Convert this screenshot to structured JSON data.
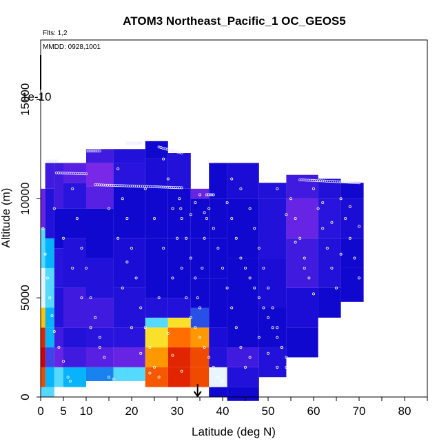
{
  "chart_data": {
    "type": "heatmap",
    "title": "ATOM3 Northeast_Pacific_1 OC_GEOS5",
    "subtitle_flights": "Flts: 1,2",
    "subtitle_dates": "MMDD: 0928,1001",
    "xlabel": "Latitude (deg N)",
    "ylabel": "Altitude (m)",
    "xlim": [
      0,
      85
    ],
    "ylim": [
      0,
      18000
    ],
    "x_ticks": [
      0,
      5,
      10,
      20,
      30,
      40,
      50,
      60,
      70,
      80
    ],
    "y_ticks": [
      0,
      5000,
      10000,
      15000
    ],
    "scale_annotation": "1e-10",
    "arrow_latitude": 34.5,
    "colors": {
      "deep_blue": "#0000c8",
      "violet": "#7a20e0",
      "cyan": "#00c8ff",
      "yellow": "#ffd000",
      "red": "#e00000"
    },
    "columns": [
      {
        "x": [
          0,
          1
        ],
        "z": [
          [
            0,
            500,
            0.55
          ],
          [
            500,
            1500,
            0.9
          ],
          [
            1500,
            2500,
            1.0
          ],
          [
            2500,
            3500,
            0.95
          ],
          [
            3500,
            4500,
            0.75
          ],
          [
            4500,
            6500,
            0.6
          ],
          [
            6500,
            8500,
            0.55
          ],
          [
            8500,
            10500,
            0.2
          ]
        ]
      },
      {
        "x": [
          1,
          3
        ],
        "z": [
          [
            0,
            500,
            0.55
          ],
          [
            500,
            1500,
            0.5
          ],
          [
            1500,
            2500,
            0.35
          ],
          [
            2500,
            3500,
            0.5
          ],
          [
            3500,
            4500,
            0.5
          ],
          [
            4500,
            6500,
            0.55
          ],
          [
            6500,
            8000,
            0.5
          ],
          [
            8000,
            10500,
            0.1
          ],
          [
            10500,
            11800,
            0.15
          ]
        ]
      },
      {
        "x": [
          3,
          5
        ],
        "z": [
          [
            500,
            1500,
            0.55
          ],
          [
            1500,
            2500,
            0.2
          ],
          [
            2500,
            3500,
            0.15
          ],
          [
            3500,
            5500,
            0.1
          ],
          [
            5500,
            7500,
            0.12
          ],
          [
            7500,
            9500,
            0.05
          ],
          [
            9500,
            11800,
            0.15
          ]
        ]
      },
      {
        "x": [
          5,
          10
        ],
        "z": [
          [
            500,
            1500,
            0.5
          ],
          [
            1500,
            2500,
            0.15
          ],
          [
            2500,
            3500,
            0.1
          ],
          [
            3500,
            5500,
            0.15
          ],
          [
            5500,
            8000,
            0.1
          ],
          [
            8000,
            9500,
            0.05
          ],
          [
            9500,
            10800,
            0.12
          ],
          [
            10800,
            11800,
            0.18
          ]
        ]
      },
      {
        "x": [
          10,
          16
        ],
        "z": [
          [
            800,
            1500,
            0.45
          ],
          [
            1500,
            2500,
            0.18
          ],
          [
            2500,
            3500,
            0.12
          ],
          [
            3500,
            5000,
            0.15
          ],
          [
            5000,
            7000,
            0.1
          ],
          [
            7000,
            9500,
            0.05
          ],
          [
            9500,
            10600,
            0.18
          ],
          [
            10600,
            11800,
            0.22
          ],
          [
            11800,
            12500,
            0.15
          ]
        ]
      },
      {
        "x": [
          16,
          23
        ],
        "z": [
          [
            800,
            1500,
            0.55
          ],
          [
            1500,
            2500,
            0.2
          ],
          [
            2500,
            3500,
            0.12
          ],
          [
            3500,
            5500,
            0.1
          ],
          [
            5500,
            8000,
            0.08
          ],
          [
            8000,
            10600,
            0.05
          ],
          [
            10600,
            11800,
            0.12
          ],
          [
            11800,
            12500,
            0.1
          ]
        ]
      },
      {
        "x": [
          23,
          28
        ],
        "z": [
          [
            500,
            1500,
            0.88
          ],
          [
            1500,
            2500,
            0.8
          ],
          [
            2500,
            3500,
            0.7
          ],
          [
            3500,
            4000,
            0.55
          ],
          [
            4000,
            5000,
            0.1
          ],
          [
            5000,
            8000,
            0.05
          ],
          [
            8000,
            10600,
            0.05
          ],
          [
            10600,
            12000,
            0.08
          ],
          [
            12000,
            12900,
            0.05
          ]
        ]
      },
      {
        "x": [
          28,
          33
        ],
        "z": [
          [
            500,
            1500,
            0.95
          ],
          [
            1500,
            2500,
            0.95
          ],
          [
            2500,
            3500,
            0.85
          ],
          [
            3500,
            4000,
            0.7
          ],
          [
            4000,
            5000,
            0.1
          ],
          [
            5000,
            8000,
            0.05
          ],
          [
            8000,
            10500,
            0.05
          ],
          [
            10500,
            12300,
            0.1
          ]
        ]
      },
      {
        "x": [
          33,
          37
        ],
        "z": [
          [
            500,
            1500,
            0.9
          ],
          [
            1500,
            2500,
            0.9
          ],
          [
            2500,
            3500,
            0.8
          ],
          [
            3500,
            4500,
            0.4
          ],
          [
            4500,
            6000,
            0.05
          ],
          [
            6000,
            8000,
            0.05
          ],
          [
            8000,
            10000,
            0.05
          ],
          [
            10000,
            10500,
            0.2
          ]
        ]
      },
      {
        "x": [
          37,
          41
        ],
        "z": [
          [
            0,
            500,
            0.05
          ],
          [
            500,
            1500,
            0.6
          ],
          [
            1500,
            2500,
            0.1
          ],
          [
            2500,
            3500,
            0.08
          ],
          [
            3500,
            6000,
            0.05
          ],
          [
            6000,
            8000,
            0.05
          ],
          [
            8000,
            10000,
            0.05
          ],
          [
            10000,
            11800,
            0.05
          ]
        ]
      },
      {
        "x": [
          41,
          48
        ],
        "z": [
          [
            -200,
            500,
            0.05
          ],
          [
            500,
            1500,
            0.1
          ],
          [
            1500,
            2500,
            0.15
          ],
          [
            2500,
            4500,
            0.05
          ],
          [
            4500,
            7000,
            0.05
          ],
          [
            7000,
            10000,
            0.05
          ],
          [
            10000,
            11800,
            0.08
          ]
        ]
      },
      {
        "x": [
          48,
          54
        ],
        "z": [
          [
            1000,
            2500,
            0.1
          ],
          [
            2500,
            4500,
            0.05
          ],
          [
            4500,
            7000,
            0.08
          ],
          [
            7000,
            10000,
            0.1
          ],
          [
            10000,
            10800,
            0.1
          ]
        ]
      },
      {
        "x": [
          54,
          61
        ],
        "z": [
          [
            2000,
            3500,
            0.05
          ],
          [
            3500,
            5500,
            0.08
          ],
          [
            5500,
            8000,
            0.15
          ],
          [
            8000,
            10000,
            0.2
          ],
          [
            10000,
            11200,
            0.15
          ]
        ]
      },
      {
        "x": [
          61,
          66
        ],
        "z": [
          [
            4000,
            5500,
            0.05
          ],
          [
            5500,
            8000,
            0.1
          ],
          [
            8000,
            10000,
            0.12
          ],
          [
            10000,
            11000,
            0.1
          ]
        ]
      },
      {
        "x": [
          66,
          71
        ],
        "z": [
          [
            4800,
            6500,
            0.05
          ],
          [
            6500,
            8000,
            0.05
          ],
          [
            8000,
            10000,
            0.08
          ],
          [
            10000,
            10800,
            0.05
          ]
        ]
      }
    ],
    "flight_tracks": [
      [
        [
          1.5,
          11900
        ],
        [
          3.5,
          11900
        ]
      ],
      [
        [
          3.5,
          11300
        ],
        [
          10,
          11250
        ]
      ],
      [
        [
          10,
          12400
        ],
        [
          13,
          12400
        ]
      ],
      [
        [
          12,
          10700
        ],
        [
          31,
          10550
        ]
      ],
      [
        [
          19,
          12800
        ],
        [
          22,
          12800
        ]
      ],
      [
        [
          26,
          12600
        ],
        [
          31,
          12300
        ]
      ],
      [
        [
          36.5,
          10200
        ],
        [
          38,
          10200
        ]
      ],
      [
        [
          57,
          10950
        ],
        [
          70,
          10800
        ]
      ]
    ],
    "sample_points": [
      [
        0.5,
        8500
      ],
      [
        1,
        7200
      ],
      [
        1.5,
        6000
      ],
      [
        2,
        5000
      ],
      [
        2.5,
        4100
      ],
      [
        3,
        3300
      ],
      [
        4,
        2500
      ],
      [
        5,
        1800
      ],
      [
        6,
        1000
      ],
      [
        6.5,
        800
      ],
      [
        7,
        10500
      ],
      [
        8,
        9000
      ],
      [
        9,
        7500
      ],
      [
        10,
        6500
      ],
      [
        11,
        5000
      ],
      [
        12,
        4000
      ],
      [
        13,
        3000
      ],
      [
        14,
        2000
      ],
      [
        15,
        1000
      ],
      [
        16,
        900
      ],
      [
        17,
        11500
      ],
      [
        18,
        10000
      ],
      [
        19,
        9000
      ],
      [
        20,
        7500
      ],
      [
        21,
        6000
      ],
      [
        22,
        4500
      ],
      [
        23,
        3500
      ],
      [
        24,
        2500
      ],
      [
        25,
        1500
      ],
      [
        26,
        1000
      ],
      [
        27,
        12000
      ],
      [
        28,
        11000
      ],
      [
        29,
        9500
      ],
      [
        30,
        8000
      ],
      [
        31,
        6500
      ],
      [
        32,
        5000
      ],
      [
        33,
        4000
      ],
      [
        34,
        3500
      ],
      [
        35,
        3000
      ],
      [
        36,
        2500
      ],
      [
        37,
        2000
      ],
      [
        38,
        1500
      ],
      [
        39,
        1000
      ],
      [
        40,
        800
      ],
      [
        41,
        9800
      ],
      [
        42,
        9000
      ],
      [
        43,
        8000
      ],
      [
        44,
        7000
      ],
      [
        45,
        6500
      ],
      [
        46,
        6000
      ],
      [
        47,
        5500
      ],
      [
        48,
        5000
      ],
      [
        49,
        4500
      ],
      [
        50,
        4000
      ],
      [
        51,
        3500
      ],
      [
        52,
        3000
      ],
      [
        53,
        2500
      ],
      [
        54,
        2000
      ],
      [
        55,
        1500
      ],
      [
        56,
        1200
      ],
      [
        57,
        1000
      ],
      [
        30.5,
        10000
      ],
      [
        30.8,
        9500
      ],
      [
        31,
        9000
      ],
      [
        32,
        8000
      ],
      [
        33,
        7000
      ],
      [
        34,
        6000
      ],
      [
        34.5,
        5000
      ],
      [
        35,
        4500
      ],
      [
        35.5,
        6500
      ],
      [
        36,
        8000
      ],
      [
        36.5,
        9000
      ],
      [
        37,
        9500
      ],
      [
        38,
        8500
      ],
      [
        39,
        7500
      ],
      [
        40,
        6500
      ],
      [
        41,
        5500
      ],
      [
        42,
        4500
      ],
      [
        43,
        3500
      ],
      [
        44,
        2500
      ],
      [
        45,
        1500
      ],
      [
        46,
        9500
      ],
      [
        47,
        8500
      ],
      [
        48,
        7500
      ],
      [
        49,
        6500
      ],
      [
        50,
        5500
      ],
      [
        51,
        4500
      ],
      [
        52,
        3500
      ],
      [
        53,
        2500
      ],
      [
        54,
        1500
      ],
      [
        55,
        10000
      ],
      [
        56,
        9000
      ],
      [
        57,
        8000
      ],
      [
        58,
        7000
      ],
      [
        59,
        6000
      ],
      [
        60,
        10500
      ],
      [
        61,
        9500
      ],
      [
        62,
        8500
      ],
      [
        63,
        7500
      ],
      [
        64,
        6500
      ],
      [
        65,
        5500
      ],
      [
        66,
        10000
      ],
      [
        67,
        9000
      ],
      [
        68,
        8000
      ],
      [
        69,
        7000
      ],
      [
        70,
        6000
      ],
      [
        3,
        9500
      ],
      [
        5,
        8000
      ],
      [
        7,
        6500
      ],
      [
        9,
        5000
      ],
      [
        11,
        3500
      ],
      [
        13,
        2500
      ],
      [
        18,
        5500
      ],
      [
        20,
        3500
      ],
      [
        22,
        2200
      ],
      [
        24,
        1200
      ],
      [
        26,
        5000
      ],
      [
        28,
        3200
      ],
      [
        29,
        2100
      ],
      [
        31,
        1300
      ],
      [
        15,
        9500
      ],
      [
        17,
        8000
      ],
      [
        19,
        6800
      ],
      [
        23,
        10500
      ],
      [
        25,
        9000
      ],
      [
        27,
        7500
      ],
      [
        29,
        6000
      ],
      [
        52,
        10500
      ],
      [
        54,
        9200
      ],
      [
        56,
        7800
      ],
      [
        58,
        6500
      ],
      [
        60,
        5200
      ],
      [
        62,
        9800
      ],
      [
        64,
        8800
      ],
      [
        66,
        7200
      ],
      [
        68,
        9600
      ],
      [
        70,
        8600
      ],
      [
        46,
        2000
      ],
      [
        48,
        3000
      ],
      [
        50,
        2200
      ],
      [
        52,
        1500
      ],
      [
        44,
        10500
      ],
      [
        42,
        11000
      ],
      [
        35,
        10200
      ],
      [
        34,
        9800
      ],
      [
        33,
        9200
      ],
      [
        36,
        9300
      ]
    ]
  }
}
